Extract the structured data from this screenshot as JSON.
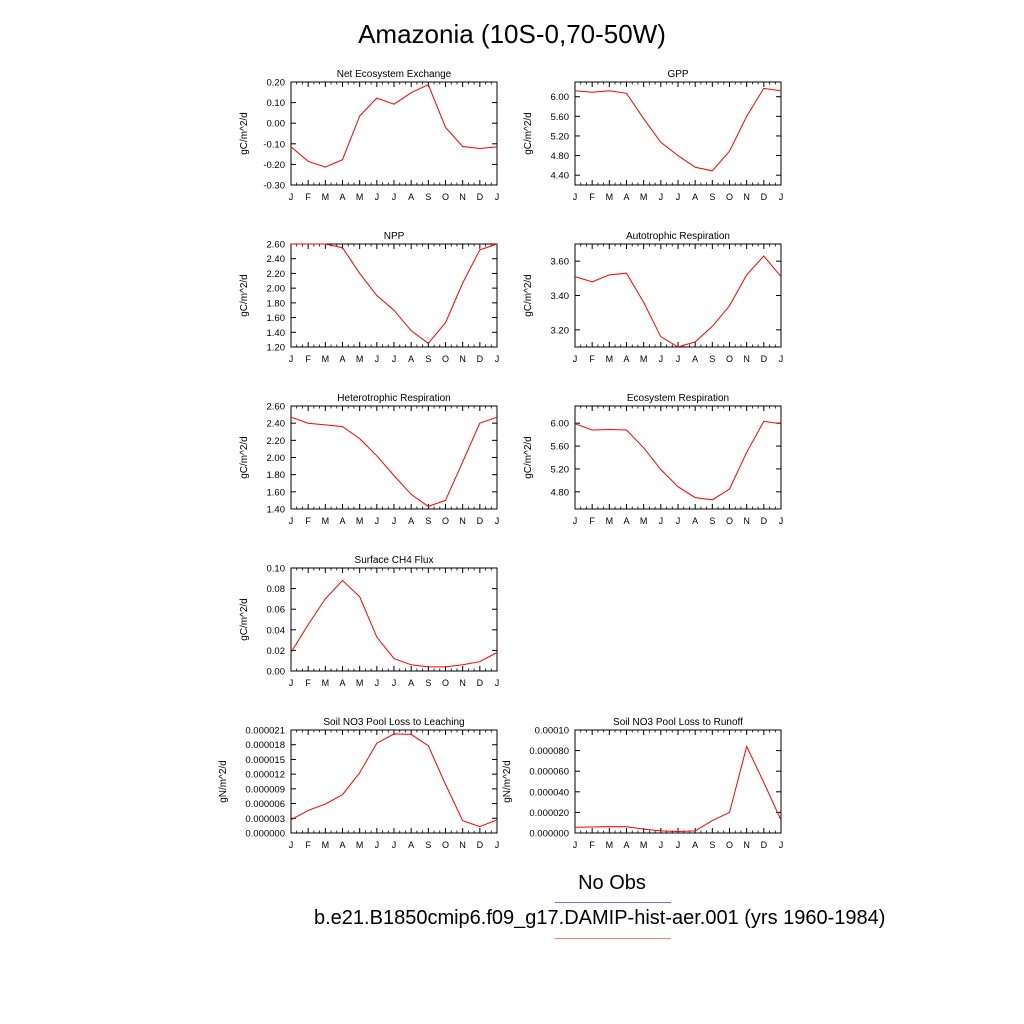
{
  "figure": {
    "title": "Amazonia (10S-0,70-50W)",
    "legend": {
      "obs_label": "No Obs",
      "obs_color": "#6f6fff",
      "case_label": "b.e21.B1850cmip6.f09_g17.DAMIP-hist-aer.001 (yrs 1960-1984)",
      "case_color": "#ff7f7f"
    },
    "series_color": "#ff0000"
  },
  "chart_data": [
    {
      "type": "line",
      "title": "Net Ecosystem Exchange",
      "ylabel": "gC/m^2/d",
      "x": [
        "J",
        "F",
        "M",
        "A",
        "M",
        "J",
        "J",
        "A",
        "S",
        "O",
        "N",
        "D",
        "J"
      ],
      "y_ticks": [
        "0.20",
        "0.10",
        "0.00",
        "-0.10",
        "-0.20",
        "-0.30"
      ],
      "ylim": [
        -0.3,
        0.2
      ],
      "values": [
        -0.115,
        -0.185,
        -0.213,
        -0.177,
        0.035,
        0.122,
        0.092,
        0.148,
        0.187,
        -0.02,
        -0.113,
        -0.123,
        -0.115
      ]
    },
    {
      "type": "line",
      "title": "GPP",
      "ylabel": "gC/m^2/d",
      "x": [
        "J",
        "F",
        "M",
        "A",
        "M",
        "J",
        "J",
        "A",
        "S",
        "O",
        "N",
        "D",
        "J"
      ],
      "y_ticks": [
        "6.00",
        "5.60",
        "5.20",
        "4.80",
        "4.40"
      ],
      "ylim": [
        4.2,
        6.3
      ],
      "values": [
        6.12,
        6.09,
        6.12,
        6.07,
        5.55,
        5.07,
        4.8,
        4.56,
        4.49,
        4.89,
        5.6,
        6.17,
        6.12
      ]
    },
    {
      "type": "line",
      "title": "NPP",
      "ylabel": "gC/m^2/d",
      "x": [
        "J",
        "F",
        "M",
        "A",
        "M",
        "J",
        "J",
        "A",
        "S",
        "O",
        "N",
        "D",
        "J"
      ],
      "y_ticks": [
        "2.60",
        "2.40",
        "2.20",
        "2.00",
        "1.80",
        "1.60",
        "1.40",
        "1.20"
      ],
      "ylim": [
        1.2,
        2.6
      ],
      "values": [
        2.6,
        2.6,
        2.6,
        2.55,
        2.2,
        1.9,
        1.7,
        1.42,
        1.25,
        1.53,
        2.07,
        2.52,
        2.6
      ]
    },
    {
      "type": "line",
      "title": "Autotrophic Respiration",
      "ylabel": "gC/m^2/d",
      "x": [
        "J",
        "F",
        "M",
        "A",
        "M",
        "J",
        "J",
        "A",
        "S",
        "O",
        "N",
        "D",
        "J"
      ],
      "y_ticks": [
        "3.60",
        "3.40",
        "3.20"
      ],
      "ylim": [
        3.1,
        3.7
      ],
      "values": [
        3.51,
        3.48,
        3.52,
        3.53,
        3.36,
        3.16,
        3.1,
        3.13,
        3.22,
        3.34,
        3.52,
        3.63,
        3.51
      ]
    },
    {
      "type": "line",
      "title": "Heterotrophic Respiration",
      "ylabel": "gC/m^2/d",
      "x": [
        "J",
        "F",
        "M",
        "A",
        "M",
        "J",
        "J",
        "A",
        "S",
        "O",
        "N",
        "D",
        "J"
      ],
      "y_ticks": [
        "2.60",
        "2.40",
        "2.20",
        "2.00",
        "1.80",
        "1.60",
        "1.40"
      ],
      "ylim": [
        1.4,
        2.6
      ],
      "values": [
        2.47,
        2.4,
        2.38,
        2.36,
        2.22,
        2.02,
        1.79,
        1.57,
        1.43,
        1.5,
        1.95,
        2.4,
        2.47
      ]
    },
    {
      "type": "line",
      "title": "Ecosystem Respiration",
      "ylabel": "gC/m^2/d",
      "x": [
        "J",
        "F",
        "M",
        "A",
        "M",
        "J",
        "J",
        "A",
        "S",
        "O",
        "N",
        "D",
        "J"
      ],
      "y_ticks": [
        "6.00",
        "5.60",
        "5.20",
        "4.80"
      ],
      "ylim": [
        4.5,
        6.3
      ],
      "values": [
        5.99,
        5.88,
        5.89,
        5.88,
        5.57,
        5.19,
        4.89,
        4.7,
        4.66,
        4.85,
        5.49,
        6.03,
        5.99
      ]
    },
    {
      "type": "line",
      "title": "Surface CH4 Flux",
      "ylabel": "gC/m^2/d",
      "x": [
        "J",
        "F",
        "M",
        "A",
        "M",
        "J",
        "J",
        "A",
        "S",
        "O",
        "N",
        "D",
        "J"
      ],
      "y_ticks": [
        "0.10",
        "0.08",
        "0.06",
        "0.04",
        "0.02",
        "0.00"
      ],
      "ylim": [
        0.0,
        0.1
      ],
      "values": [
        0.018,
        0.045,
        0.07,
        0.088,
        0.072,
        0.033,
        0.012,
        0.006,
        0.004,
        0.004,
        0.006,
        0.009,
        0.018
      ]
    },
    {
      "type": "line",
      "title": "Soil NO3 Pool Loss to Leaching",
      "ylabel": "gN/m^2/d",
      "x": [
        "J",
        "F",
        "M",
        "A",
        "M",
        "J",
        "J",
        "A",
        "S",
        "O",
        "N",
        "D",
        "J"
      ],
      "y_ticks": [
        "0.000021",
        "0.000018",
        "0.000015",
        "0.000012",
        "0.000009",
        "0.000006",
        "0.000003",
        "0.000000"
      ],
      "ylim": [
        0.0,
        2.1e-05
      ],
      "values": [
        2.7e-06,
        4.6e-06,
        5.9e-06,
        7.8e-06,
        1.23e-05,
        1.83e-05,
        2.02e-05,
        2.01e-05,
        1.78e-05,
        9.9e-06,
        2.5e-06,
        1.3e-06,
        2.7e-06
      ]
    },
    {
      "type": "line",
      "title": "Soil NO3 Pool Loss to Runoff",
      "ylabel": "gN/m^2/d",
      "x": [
        "J",
        "F",
        "M",
        "A",
        "M",
        "J",
        "J",
        "A",
        "S",
        "O",
        "N",
        "D",
        "J"
      ],
      "y_ticks": [
        "0.00010",
        "0.000080",
        "0.000060",
        "0.000040",
        "0.000020",
        "0.000000"
      ],
      "ylim": [
        0.0,
        0.0001
      ],
      "values": [
        5.5e-06,
        5.8e-06,
        6.2e-06,
        6.1e-06,
        3.8e-06,
        2e-06,
        1.5e-06,
        2e-06,
        1.2e-05,
        2e-05,
        8.4e-05,
        4.9e-05,
        1.25e-05
      ]
    }
  ]
}
